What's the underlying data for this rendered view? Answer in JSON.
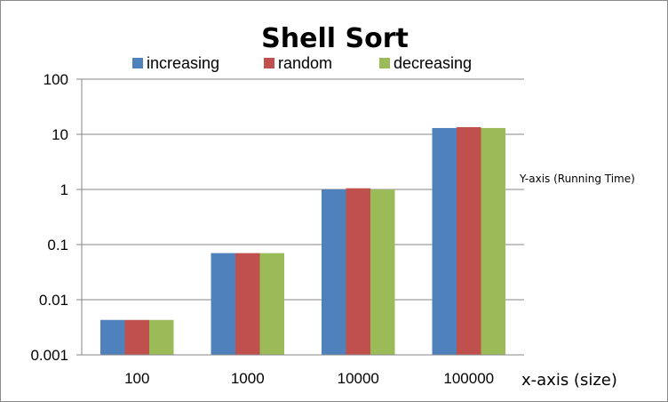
{
  "chart_data": {
    "type": "bar",
    "title": "Shell Sort",
    "xlabel": "x-axis (size)",
    "ylabel": "Y-axis (Running Time)",
    "y_scale": "log",
    "ylim": [
      0.001,
      100
    ],
    "y_ticks": [
      "0.001",
      "0.01",
      "0.1",
      "1",
      "10",
      "100"
    ],
    "grid": true,
    "legend_position": "top",
    "categories": [
      "100",
      "1000",
      "10000",
      "100000"
    ],
    "series": [
      {
        "name": "increasing",
        "color": "#4f81bd",
        "values": [
          0.0043,
          0.07,
          1.0,
          13.0
        ]
      },
      {
        "name": "random",
        "color": "#c0504d",
        "values": [
          0.0043,
          0.07,
          1.05,
          13.5
        ]
      },
      {
        "name": "decreasing",
        "color": "#9bbb59",
        "values": [
          0.0043,
          0.07,
          1.0,
          13.0
        ]
      }
    ]
  }
}
